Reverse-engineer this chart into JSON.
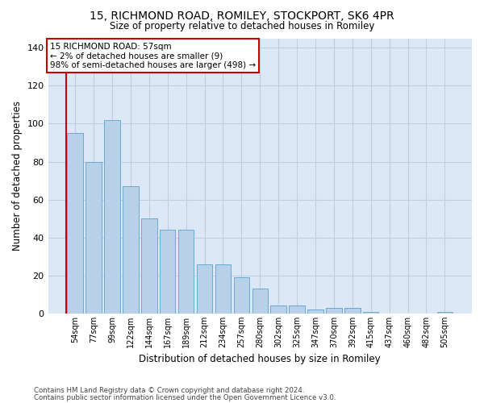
{
  "title_line1": "15, RICHMOND ROAD, ROMILEY, STOCKPORT, SK6 4PR",
  "title_line2": "Size of property relative to detached houses in Romiley",
  "xlabel": "Distribution of detached houses by size in Romiley",
  "ylabel": "Number of detached properties",
  "categories": [
    "54sqm",
    "77sqm",
    "99sqm",
    "122sqm",
    "144sqm",
    "167sqm",
    "189sqm",
    "212sqm",
    "234sqm",
    "257sqm",
    "280sqm",
    "302sqm",
    "325sqm",
    "347sqm",
    "370sqm",
    "392sqm",
    "415sqm",
    "437sqm",
    "460sqm",
    "482sqm",
    "505sqm"
  ],
  "values": [
    95,
    80,
    102,
    67,
    50,
    44,
    44,
    26,
    26,
    19,
    13,
    4,
    4,
    2,
    3,
    3,
    1,
    0,
    0,
    0,
    1
  ],
  "bar_color": "#b8d0e8",
  "bar_edgecolor": "#6aaad4",
  "annotation_text": "15 RICHMOND ROAD: 57sqm\n← 2% of detached houses are smaller (9)\n98% of semi-detached houses are larger (498) →",
  "annotation_box_facecolor": "#ffffff",
  "annotation_box_edgecolor": "#cc0000",
  "vline_color": "#cc0000",
  "ylim": [
    0,
    145
  ],
  "yticks": [
    0,
    20,
    40,
    60,
    80,
    100,
    120,
    140
  ],
  "grid_color": "#c0cfe0",
  "bg_color": "#dce8f5",
  "footer_line1": "Contains HM Land Registry data © Crown copyright and database right 2024.",
  "footer_line2": "Contains public sector information licensed under the Open Government Licence v3.0.",
  "figsize": [
    6.0,
    5.0
  ],
  "dpi": 100
}
